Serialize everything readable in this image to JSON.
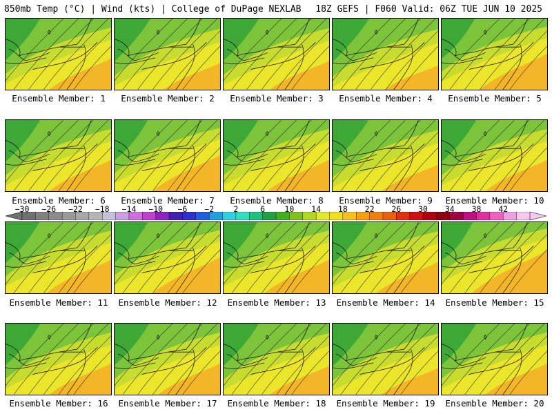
{
  "header": {
    "left": "850mb Temp (°C) | Wind (kts) | College of DuPage NEXLAB",
    "right": "18Z GEFS | F060 Valid: 06Z TUE JUN 10 2025"
  },
  "members": [
    {
      "label": "Ensemble Member: 1",
      "warm": 0.45
    },
    {
      "label": "Ensemble Member: 2",
      "warm": 0.35
    },
    {
      "label": "Ensemble Member: 3",
      "warm": 0.4
    },
    {
      "label": "Ensemble Member: 4",
      "warm": 0.3
    },
    {
      "label": "Ensemble Member: 5",
      "warm": 0.55
    },
    {
      "label": "Ensemble Member: 6",
      "warm": 0.45
    },
    {
      "label": "Ensemble Member: 7",
      "warm": 0.55
    },
    {
      "label": "Ensemble Member: 8",
      "warm": 0.45
    },
    {
      "label": "Ensemble Member: 9",
      "warm": 0.35
    },
    {
      "label": "Ensemble Member: 10",
      "warm": 0.45
    },
    {
      "label": "Ensemble Member: 11",
      "warm": 0.5
    },
    {
      "label": "Ensemble Member: 12",
      "warm": 0.55
    },
    {
      "label": "Ensemble Member: 13",
      "warm": 0.5
    },
    {
      "label": "Ensemble Member: 14",
      "warm": 0.45
    },
    {
      "label": "Ensemble Member: 15",
      "warm": 0.7
    },
    {
      "label": "Ensemble Member: 16",
      "warm": 0.45
    },
    {
      "label": "Ensemble Member: 17",
      "warm": 0.45
    },
    {
      "label": "Ensemble Member: 18",
      "warm": 0.4
    },
    {
      "label": "Ensemble Member: 19",
      "warm": 0.35
    },
    {
      "label": "Ensemble Member: 20",
      "warm": 0.45
    }
  ],
  "colorbar": {
    "labels": [
      "−30",
      "−26",
      "−22",
      "−18",
      "−14",
      "−10",
      "−6",
      "−2",
      "2",
      "6",
      "10",
      "14",
      "18",
      "22",
      "26",
      "30",
      "34",
      "38",
      "42"
    ],
    "colors": [
      "#707070",
      "#808080",
      "#8c8c8c",
      "#9a9a9a",
      "#a8a8a8",
      "#b6b6b6",
      "#c2c2d8",
      "#c8a0e0",
      "#d070e0",
      "#c040d0",
      "#9020c0",
      "#4020b0",
      "#3030d0",
      "#2060e0",
      "#20a0e0",
      "#30d0e0",
      "#30e0c0",
      "#20c080",
      "#20a040",
      "#40b020",
      "#80c020",
      "#b0d820",
      "#e0e830",
      "#f0e020",
      "#f8c020",
      "#f8a010",
      "#f08010",
      "#e86010",
      "#e03010",
      "#d01010",
      "#b00010",
      "#900010",
      "#a00040",
      "#c01080",
      "#e030a0",
      "#f060c0",
      "#f0a0e0",
      "#f8c8f0"
    ]
  }
}
